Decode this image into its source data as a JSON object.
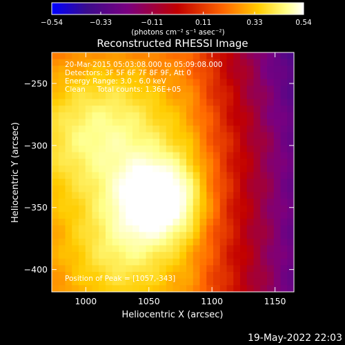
{
  "chart_data": {
    "type": "heatmap",
    "title": "Reconstructed RHESSI Image",
    "xlabel": "Heliocentric X (arcsec)",
    "ylabel": "Heliocentric Y (arcsec)",
    "xlim": [
      973,
      1165
    ],
    "ylim": [
      -418,
      -225
    ],
    "x_ticks": [
      1000,
      1050,
      1100,
      1150
    ],
    "y_ticks": [
      -250,
      -300,
      -350,
      -400
    ],
    "x_tick_labels": [
      "1000",
      "1050",
      "1100",
      "1150"
    ],
    "y_tick_labels": [
      "−250",
      "−300",
      "−350",
      "−400"
    ],
    "colorbar": {
      "min": -0.54,
      "max": 0.54,
      "ticks": [
        -0.54,
        -0.33,
        -0.11,
        0.11,
        0.33,
        0.54
      ],
      "tick_labels": [
        "−0.54",
        "−0.33",
        "−0.11",
        "0.11",
        "0.33",
        "0.54"
      ],
      "units_label": "(photons cm⁻² s⁻¹ asec⁻²)",
      "colormap": [
        "#0000ff",
        "#3b0c8c",
        "#7a0080",
        "#c20000",
        "#ff6600",
        "#ffcc00",
        "#ffff88",
        "#ffffff"
      ]
    },
    "annotations": [
      "20-Mar-2015 05:03:08.000 to 05:09:08.000",
      "Detectors: 3F 5F 6F 7F 8F 9F, Att 0",
      "Energy Range: 3.0 - 6.0 keV",
      "Clean     Total counts: 1.36E+05",
      "Position of Peak = [1057,-343]"
    ],
    "peak": {
      "x": 1057,
      "y": -343
    },
    "image_intensity_description": "bright emission centered near peak, fading to dark purple toward upper-right limb"
  },
  "footer": {
    "date": "19-May-2022 22:03"
  }
}
